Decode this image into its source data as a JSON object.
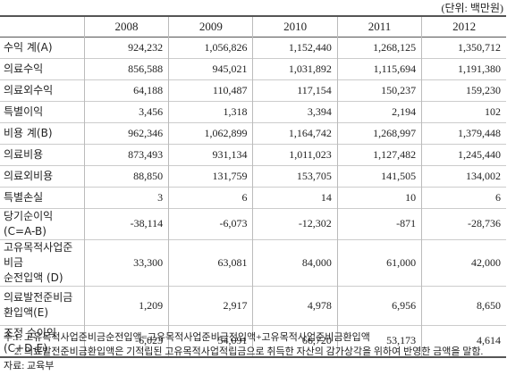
{
  "unit": "(단위: 백만원)",
  "table": {
    "columns": [
      "2008",
      "2009",
      "2010",
      "2011",
      "2012"
    ],
    "rows": [
      {
        "label": [
          "수익 계(A)"
        ],
        "values": [
          "924,232",
          "1,056,826",
          "1,152,440",
          "1,268,125",
          "1,350,712"
        ]
      },
      {
        "label": [
          "의료수익"
        ],
        "values": [
          "856,588",
          "945,021",
          "1,031,892",
          "1,115,694",
          "1,191,380"
        ]
      },
      {
        "label": [
          "의료외수익"
        ],
        "values": [
          "64,188",
          "110,487",
          "117,154",
          "150,237",
          "159,230"
        ]
      },
      {
        "label": [
          "특별이익"
        ],
        "values": [
          "3,456",
          "1,318",
          "3,394",
          "2,194",
          "102"
        ]
      },
      {
        "label": [
          "비용 계(B)"
        ],
        "values": [
          "962,346",
          "1,062,899",
          "1,164,742",
          "1,268,997",
          "1,379,448"
        ]
      },
      {
        "label": [
          "의료비용"
        ],
        "values": [
          "873,493",
          "931,134",
          "1,011,023",
          "1,127,482",
          "1,245,440"
        ]
      },
      {
        "label": [
          "의료외비용"
        ],
        "values": [
          "88,850",
          "131,759",
          "153,705",
          "141,505",
          "134,002"
        ]
      },
      {
        "label": [
          "특별손실"
        ],
        "values": [
          "3",
          "6",
          "14",
          "10",
          "6"
        ]
      },
      {
        "label": [
          "당기순이익(C=A-B)"
        ],
        "values": [
          "-38,114",
          "-6,073",
          "-12,302",
          "-871",
          "-28,736"
        ]
      },
      {
        "label": [
          "고유목적사업준비금",
          "순전입액 (D)"
        ],
        "values": [
          "33,300",
          "63,081",
          "84,000",
          "61,000",
          "42,000"
        ]
      },
      {
        "label": [
          "의료발전준비금",
          "환입액(E)"
        ],
        "values": [
          "1,209",
          "2,917",
          "4,978",
          "6,956",
          "8,650"
        ]
      },
      {
        "label": [
          "조정 순이익(C+D-E)"
        ],
        "values": [
          "-6,023",
          "54,091",
          "66,720",
          "53,173",
          "4,614"
        ]
      }
    ]
  },
  "notes": {
    "prefix": "주:",
    "items": [
      "1. 고유목적사업준비금순전입액=고유목적사업준비금전입액+고유목적사업준비금환입액",
      "2. 의료발전준비금환입액은 기적립된 고유목적사업적립금으로 취득한 자산의 감가상각을 위하여 반영한 금액을 말함."
    ],
    "source": "자료: 교육부"
  }
}
